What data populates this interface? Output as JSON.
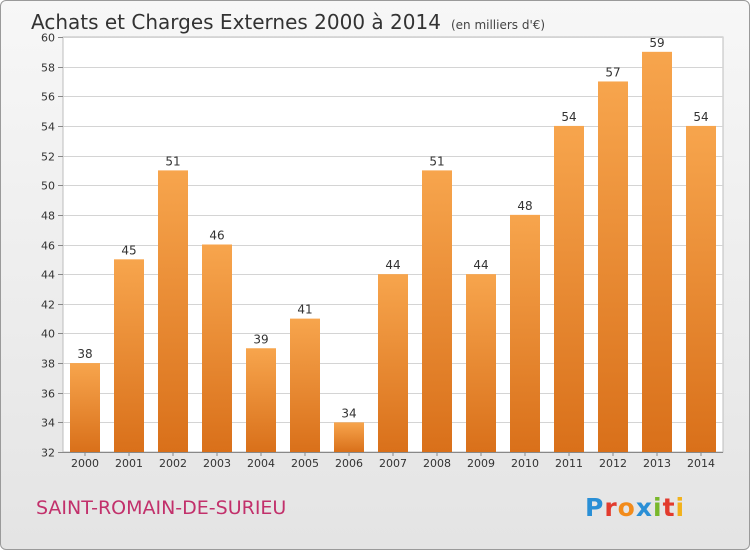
{
  "header": {
    "title": "Achats et Charges Externes 2000 à 2014",
    "subtitle": "(en milliers d'€)"
  },
  "footer": {
    "city": "SAINT-ROMAIN-DE-SURIEU",
    "logo_text": "Proxiti",
    "logo_colors": [
      "#2a8fd6",
      "#e23b2e",
      "#f28b1b",
      "#2a8fd6",
      "#79b82c",
      "#e23b2e",
      "#f2b21b"
    ]
  },
  "colors": {
    "bar_top": "#f7a54d",
    "bar_bottom": "#d9701a",
    "grid": "#d4d4d4",
    "plot_bg": "#ffffff"
  },
  "chart_data": {
    "type": "bar",
    "title": "Achats et Charges Externes 2000 à 2014",
    "subtitle": "(en milliers d'€)",
    "categories": [
      "2000",
      "2001",
      "2002",
      "2003",
      "2004",
      "2005",
      "2006",
      "2007",
      "2008",
      "2009",
      "2010",
      "2011",
      "2012",
      "2013",
      "2014"
    ],
    "values": [
      38,
      45,
      51,
      46,
      39,
      41,
      34,
      44,
      51,
      44,
      48,
      54,
      57,
      59,
      54
    ],
    "ylim": [
      32,
      60
    ],
    "yticks": [
      32,
      34,
      36,
      38,
      40,
      42,
      44,
      46,
      48,
      50,
      52,
      54,
      56,
      58,
      60
    ],
    "grid": true,
    "xlabel": "",
    "ylabel": ""
  }
}
